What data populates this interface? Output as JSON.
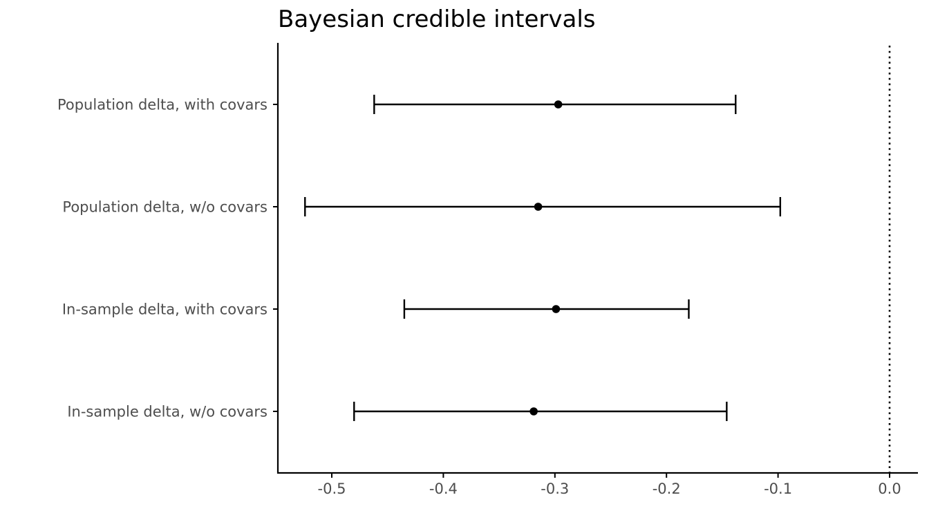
{
  "chart_data": {
    "type": "errorbar",
    "title": "Bayesian credible intervals",
    "xlabel": "",
    "ylabel": "",
    "xlim": [
      -0.55,
      0.025
    ],
    "x_ticks": [
      -0.5,
      -0.4,
      -0.3,
      -0.2,
      -0.1,
      0.0
    ],
    "x_tick_labels": [
      "-0.5",
      "-0.4",
      "-0.3",
      "-0.2",
      "-0.1",
      "0.0"
    ],
    "categories": [
      "Population delta, with covars",
      "Population delta, w/o covars",
      "In-sample delta, with covars",
      "In-sample delta, w/o covars"
    ],
    "series": [
      {
        "estimate": [
          -0.297,
          -0.315,
          -0.299,
          -0.319
        ],
        "lower": [
          -0.462,
          -0.524,
          -0.435,
          -0.48
        ],
        "upper": [
          -0.138,
          -0.098,
          -0.18,
          -0.146
        ]
      }
    ],
    "reference_line": {
      "x": 0.0,
      "style": "dotted"
    },
    "grid": false,
    "colors": {
      "marks": "#000000",
      "tick_text": "#4d4d4d",
      "axis": "#000000"
    }
  }
}
